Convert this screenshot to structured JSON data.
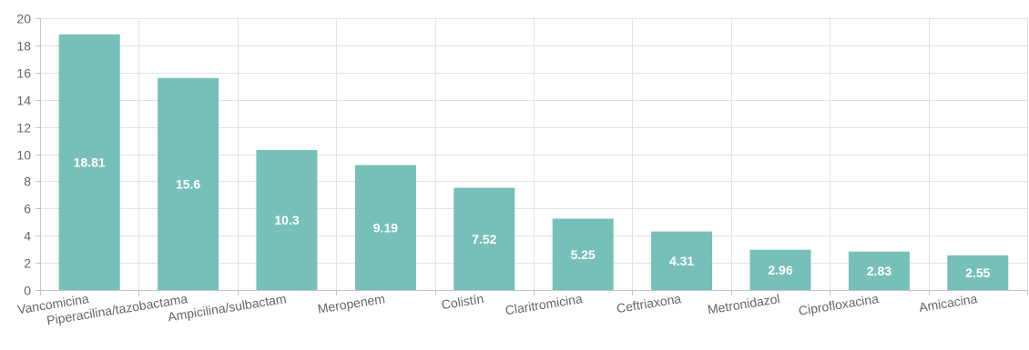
{
  "chart_data": {
    "type": "bar",
    "categories": [
      "Vancomicina",
      "Piperacilina/tazobactama",
      "Ampicilina/sulbactam",
      "Meropenem",
      "Colistín",
      "Claritromicina",
      "Ceftriaxona",
      "Metronidazol",
      "Ciprofloxacina",
      "Amicacina"
    ],
    "values": [
      18.81,
      15.6,
      10.3,
      9.19,
      7.52,
      5.25,
      4.31,
      2.96,
      2.83,
      2.55
    ],
    "data_labels": [
      "18.81",
      "15.6",
      "10.3",
      "9.19",
      "7.52",
      "5.25",
      "4.31",
      "2.96",
      "2.83",
      "2.55"
    ],
    "ylim": [
      0,
      20
    ],
    "yticks": [
      0,
      2,
      4,
      6,
      8,
      10,
      12,
      14,
      16,
      18,
      20
    ],
    "grid": true,
    "bar_color": "#77c0b9",
    "grid_color": "#e1e1e1",
    "label_color": "#ffffff"
  }
}
